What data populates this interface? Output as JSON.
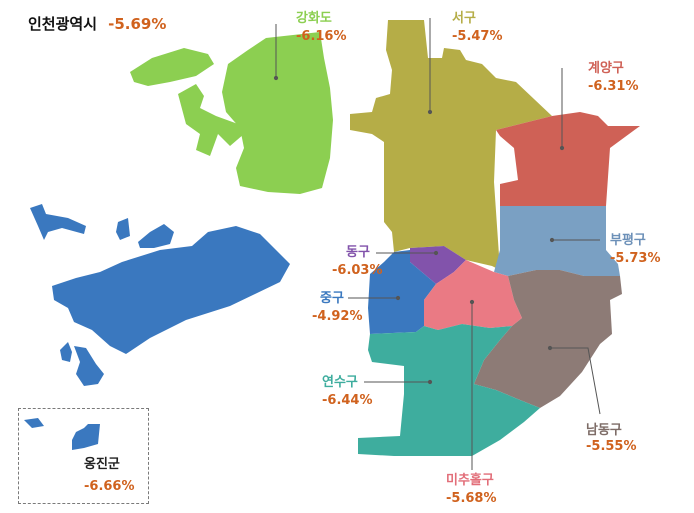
{
  "title": {
    "name": "인천광역시",
    "value": "-5.69%"
  },
  "colors": {
    "ganghwa": "#8ccf51",
    "seo": "#b5ad47",
    "gyeyang": "#cf6156",
    "bupyeong": "#7aa0c3",
    "dong": "#8253ab",
    "jung": "#3a78bf",
    "michuhol": "#ea7a84",
    "namdong": "#8d7b76",
    "yeonsu": "#3ead9e",
    "ongjin": "#3a78bf",
    "value_text": "#d0621e"
  },
  "districts": [
    {
      "id": "ganghwa",
      "name": "강화도",
      "value": "-6.16%",
      "name_color": "#8ccf51"
    },
    {
      "id": "seo",
      "name": "서구",
      "value": "-5.47%",
      "name_color": "#b5ad47"
    },
    {
      "id": "gyeyang",
      "name": "계양구",
      "value": "-6.31%",
      "name_color": "#cf6156"
    },
    {
      "id": "bupyeong",
      "name": "부평구",
      "value": "-5.73%",
      "name_color": "#6c90b8"
    },
    {
      "id": "dong",
      "name": "동구",
      "value": "-6.03%",
      "name_color": "#8253ab"
    },
    {
      "id": "jung",
      "name": "중구",
      "value": "-4.92%",
      "name_color": "#3a78bf"
    },
    {
      "id": "yeonsu",
      "name": "연수구",
      "value": "-6.44%",
      "name_color": "#3ead9e"
    },
    {
      "id": "namdong",
      "name": "남동구",
      "value": "-5.55%",
      "name_color": "#7d6c67"
    },
    {
      "id": "michuhol",
      "name": "미추홀구",
      "value": "-5.68%",
      "name_color": "#e26e79"
    },
    {
      "id": "ongjin",
      "name": "옹진군",
      "value": "-6.66%",
      "name_color": "#222222"
    }
  ]
}
